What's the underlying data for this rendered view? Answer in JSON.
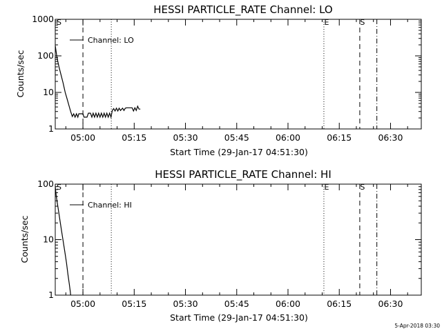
{
  "footer_text": "5-Apr-2018 03:30",
  "chart_data": [
    {
      "type": "line",
      "title": "HESSI PARTICLE_RATE Channel: LO",
      "xlabel": "Start Time (29-Jan-17 04:51:30)",
      "ylabel": "Counts/sec",
      "y_scale": "log",
      "ylim": [
        1,
        1000
      ],
      "xlim_minutes": [
        -8.1,
        99
      ],
      "x_ticks": [
        "05:00",
        "05:15",
        "05:30",
        "05:45",
        "06:00",
        "06:15",
        "06:30"
      ],
      "y_ticks": [
        "1",
        "10",
        "100",
        "1000"
      ],
      "legend": {
        "position": "top-left",
        "entries": [
          "Channel: LO"
        ]
      },
      "markers": [
        {
          "minute": -7.8,
          "style": "label",
          "label": "S"
        },
        {
          "minute": 0,
          "style": "dashed",
          "label": ""
        },
        {
          "minute": 8.3,
          "style": "dotted",
          "label": ""
        },
        {
          "minute": 70.5,
          "style": "dotted",
          "label": "E"
        },
        {
          "minute": 81,
          "style": "dashed",
          "label": "S"
        },
        {
          "minute": 86,
          "style": "dashdot",
          "label": ""
        }
      ],
      "series": [
        {
          "name": "Channel: LO",
          "points": [
            [
              -8.1,
              190
            ],
            [
              -7.6,
              90
            ],
            [
              -7,
              50
            ],
            [
              -6.4,
              30
            ],
            [
              -5.8,
              18
            ],
            [
              -5.2,
              10
            ],
            [
              -4.6,
              6.5
            ],
            [
              -4.1,
              4.4
            ],
            [
              -3.6,
              3
            ],
            [
              -3.1,
              2.2
            ],
            [
              -2.7,
              2.6
            ],
            [
              -2.3,
              2.1
            ],
            [
              -1.9,
              2.6
            ],
            [
              -1.5,
              2.1
            ],
            [
              -1.2,
              2.6
            ],
            [
              0,
              2.6
            ],
            [
              0.3,
              2.1
            ],
            [
              1.2,
              2.1
            ],
            [
              1.6,
              2.7
            ],
            [
              2.2,
              2.7
            ],
            [
              2.6,
              2.1
            ],
            [
              3,
              2.7
            ],
            [
              3.4,
              2.1
            ],
            [
              3.8,
              2.7
            ],
            [
              4.2,
              2.1
            ],
            [
              4.6,
              2.7
            ],
            [
              5,
              2.1
            ],
            [
              5.4,
              2.7
            ],
            [
              5.8,
              2.1
            ],
            [
              6.2,
              2.7
            ],
            [
              6.6,
              2.1
            ],
            [
              7,
              2.7
            ],
            [
              7.4,
              2.1
            ],
            [
              7.8,
              2.7
            ],
            [
              8.2,
              2.1
            ],
            [
              8.6,
              3.2
            ],
            [
              9,
              3.6
            ],
            [
              9.4,
              3.1
            ],
            [
              9.8,
              3.7
            ],
            [
              10.2,
              3.1
            ],
            [
              10.6,
              3.7
            ],
            [
              11,
              3.2
            ],
            [
              11.6,
              3.7
            ],
            [
              12,
              3.2
            ],
            [
              12.4,
              3.7
            ],
            [
              12.8,
              3.8
            ],
            [
              13.6,
              3.8
            ],
            [
              14.4,
              3.8
            ],
            [
              14.8,
              3.1
            ],
            [
              15.2,
              3.8
            ],
            [
              15.6,
              3.2
            ],
            [
              16,
              4.2
            ],
            [
              16.4,
              3.5
            ],
            [
              16.8,
              3.5
            ]
          ]
        }
      ]
    },
    {
      "type": "line",
      "title": "HESSI PARTICLE_RATE Channel: HI",
      "xlabel": "Start Time (29-Jan-17 04:51:30)",
      "ylabel": "Counts/sec",
      "y_scale": "log",
      "ylim": [
        1,
        100
      ],
      "xlim_minutes": [
        -8.1,
        99
      ],
      "x_ticks": [
        "05:00",
        "05:15",
        "05:30",
        "05:45",
        "06:00",
        "06:15",
        "06:30"
      ],
      "y_ticks": [
        "1",
        "10",
        "100"
      ],
      "legend": {
        "position": "top-left",
        "entries": [
          "Channel: HI"
        ]
      },
      "markers": [
        {
          "minute": -7.8,
          "style": "label",
          "label": "S"
        },
        {
          "minute": 0,
          "style": "dashed",
          "label": ""
        },
        {
          "minute": 8.3,
          "style": "dotted",
          "label": ""
        },
        {
          "minute": 70.5,
          "style": "dotted",
          "label": "E"
        },
        {
          "minute": 81,
          "style": "dashed",
          "label": "S"
        },
        {
          "minute": 86,
          "style": "dashdot",
          "label": ""
        }
      ],
      "series": [
        {
          "name": "Channel: HI",
          "points": [
            [
              -8.1,
              90
            ],
            [
              -7.8,
              60
            ],
            [
              -7.3,
              38
            ],
            [
              -6.8,
              24
            ],
            [
              -6.3,
              15
            ],
            [
              -5.8,
              9.5
            ],
            [
              -5.3,
              6
            ],
            [
              -4.8,
              3.8
            ],
            [
              -4.4,
              2.4
            ],
            [
              -4,
              1.6
            ],
            [
              -3.7,
              1.15
            ],
            [
              -3.6,
              1
            ]
          ]
        }
      ]
    }
  ]
}
